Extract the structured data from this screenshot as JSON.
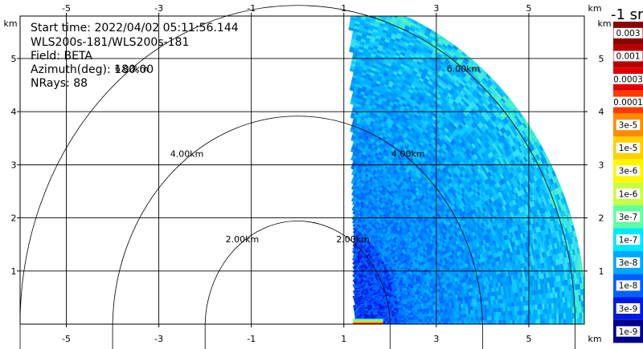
{
  "header": {
    "start_time": "Start time: 2022/04/02 05:11:56.144",
    "station": "WLS200s-181/WLS200s-181",
    "field": "Field: BETA",
    "azimuth": "Azimuth(deg): 180.00",
    "nrays": "NRays: 88"
  },
  "colorbar": {
    "title": "-1 sr",
    "labels": [
      "0.003",
      "0.001",
      "0.0003",
      "0.0001",
      "3e-5",
      "1e-5",
      "3e-6",
      "1e-6",
      "3e-7",
      "1e-7",
      "3e-8",
      "1e-8",
      "3e-9",
      "1e-9"
    ],
    "colors": [
      "#8b0000",
      "#b80000",
      "#e00000",
      "#ff3a00",
      "#ff8c00",
      "#ffd000",
      "#fff600",
      "#c8ff40",
      "#60ffa0",
      "#00e8ff",
      "#00a8ff",
      "#0060ff",
      "#0018e0",
      "#00008b"
    ]
  },
  "chart_data": {
    "type": "heatmap",
    "x_unit": "km",
    "y_unit": "km",
    "xlim": [
      -6.0,
      6.2
    ],
    "ylim": [
      0,
      5.8
    ],
    "x_ticks": [
      -5,
      -3,
      -1,
      1,
      3,
      5
    ],
    "y_ticks": [
      1,
      2,
      3,
      4,
      5
    ],
    "range_rings_km": [
      2,
      4,
      6
    ],
    "ring_labels": [
      "2.00km",
      "4.00km",
      "6.00km"
    ],
    "data_sector": {
      "x_min_km": 1.2,
      "max_range_km": 6.2
    },
    "scale": "log"
  }
}
